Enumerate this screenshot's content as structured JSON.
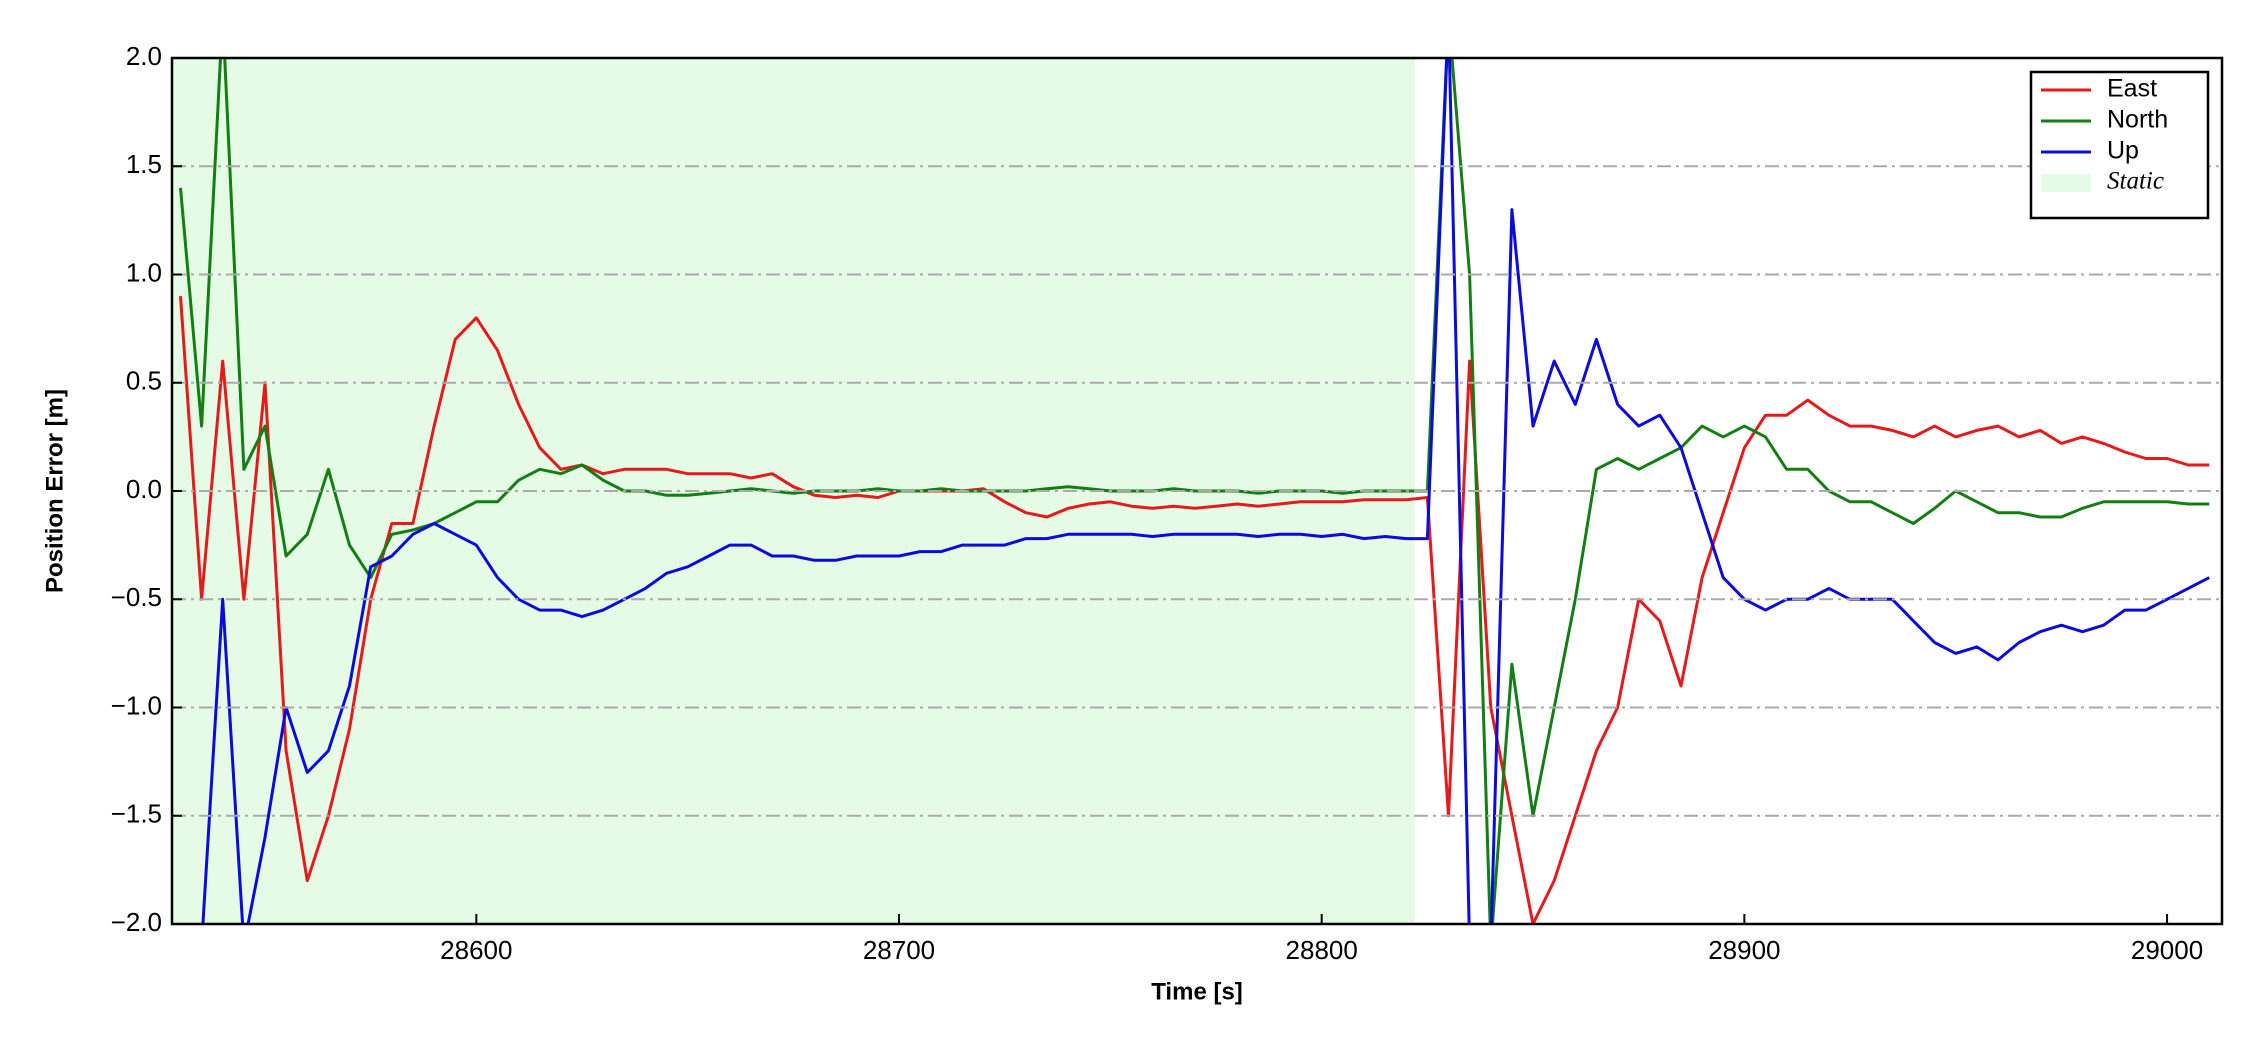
{
  "chart_data": {
    "type": "line",
    "x_label": "Time [s]",
    "y_label": "Position Error [m]",
    "x": [
      28530,
      28535,
      28540,
      28545,
      28550,
      28555,
      28560,
      28565,
      28570,
      28575,
      28580,
      28585,
      28590,
      28595,
      28600,
      28605,
      28610,
      28615,
      28620,
      28625,
      28630,
      28635,
      28640,
      28645,
      28650,
      28655,
      28660,
      28665,
      28670,
      28675,
      28680,
      28685,
      28690,
      28695,
      28700,
      28705,
      28710,
      28715,
      28720,
      28725,
      28730,
      28735,
      28740,
      28745,
      28750,
      28755,
      28760,
      28765,
      28770,
      28775,
      28780,
      28785,
      28790,
      28795,
      28800,
      28805,
      28810,
      28815,
      28820,
      28825,
      28830,
      28835,
      28840,
      28845,
      28850,
      28855,
      28860,
      28865,
      28870,
      28875,
      28880,
      28885,
      28890,
      28895,
      28900,
      28905,
      28910,
      28915,
      28920,
      28925,
      28930,
      28935,
      28940,
      28945,
      28950,
      28955,
      28960,
      28965,
      28970,
      28975,
      28980,
      28985,
      28990,
      28995,
      29000,
      29005,
      29010
    ],
    "series": [
      {
        "name": "East",
        "color": "#e6191b",
        "values": [
          0.9,
          -0.5,
          0.6,
          -0.5,
          0.5,
          -1.2,
          -1.8,
          -1.5,
          -1.1,
          -0.5,
          -0.15,
          -0.15,
          0.3,
          0.7,
          0.8,
          0.65,
          0.4,
          0.2,
          0.1,
          0.12,
          0.08,
          0.1,
          0.1,
          0.1,
          0.08,
          0.08,
          0.08,
          0.06,
          0.08,
          0.02,
          -0.02,
          -0.03,
          -0.02,
          -0.03,
          0,
          0,
          0,
          0,
          0.01,
          -0.05,
          -0.1,
          -0.12,
          -0.08,
          -0.06,
          -0.05,
          -0.07,
          -0.08,
          -0.07,
          -0.08,
          -0.07,
          -0.06,
          -0.07,
          -0.06,
          -0.05,
          -0.05,
          -0.05,
          -0.04,
          -0.04,
          -0.04,
          -0.03,
          -1.5,
          0.6,
          -1.0,
          -1.5,
          -2.0,
          -1.8,
          -1.5,
          -1.2,
          -1.0,
          -0.5,
          -0.6,
          -0.9,
          -0.4,
          -0.1,
          0.2,
          0.35,
          0.35,
          0.42,
          0.35,
          0.3,
          0.3,
          0.28,
          0.25,
          0.3,
          0.25,
          0.28,
          0.3,
          0.25,
          0.28,
          0.22,
          0.25,
          0.22,
          0.18,
          0.15,
          0.15,
          0.12,
          0.12
        ]
      },
      {
        "name": "North",
        "color": "#137f13",
        "values": [
          1.4,
          0.3,
          2.2,
          0.1,
          0.3,
          -0.3,
          -0.2,
          0.1,
          -0.25,
          -0.4,
          -0.2,
          -0.18,
          -0.15,
          -0.1,
          -0.05,
          -0.05,
          0.05,
          0.1,
          0.08,
          0.12,
          0.05,
          0,
          0,
          -0.02,
          -0.02,
          -0.01,
          0,
          0.01,
          0,
          -0.01,
          0,
          0,
          0,
          0.01,
          0,
          0,
          0.01,
          0,
          0,
          0,
          0,
          0.01,
          0.02,
          0.01,
          0,
          0,
          0,
          0.01,
          0,
          0,
          0,
          -0.01,
          0,
          0,
          0,
          -0.01,
          0,
          0,
          0,
          0,
          2.2,
          1.0,
          -2.1,
          -0.8,
          -1.5,
          -1.0,
          -0.5,
          0.1,
          0.15,
          0.1,
          0.15,
          0.2,
          0.3,
          0.25,
          0.3,
          0.25,
          0.1,
          0.1,
          0,
          -0.05,
          -0.05,
          -0.1,
          -0.15,
          -0.08,
          0,
          -0.05,
          -0.1,
          -0.1,
          -0.12,
          -0.12,
          -0.08,
          -0.05,
          -0.05,
          -0.05,
          -0.05,
          -0.06,
          -0.06
        ]
      },
      {
        "name": "Up",
        "color": "#0b0bdd",
        "values": [
          -2.1,
          -2.1,
          -0.5,
          -2.1,
          -1.6,
          -1.0,
          -1.3,
          -1.2,
          -0.9,
          -0.35,
          -0.3,
          -0.2,
          -0.15,
          -0.2,
          -0.25,
          -0.4,
          -0.5,
          -0.55,
          -0.55,
          -0.58,
          -0.55,
          -0.5,
          -0.45,
          -0.38,
          -0.35,
          -0.3,
          -0.25,
          -0.25,
          -0.3,
          -0.3,
          -0.32,
          -0.32,
          -0.3,
          -0.3,
          -0.3,
          -0.28,
          -0.28,
          -0.25,
          -0.25,
          -0.25,
          -0.22,
          -0.22,
          -0.2,
          -0.2,
          -0.2,
          -0.2,
          -0.21,
          -0.2,
          -0.2,
          -0.2,
          -0.2,
          -0.21,
          -0.2,
          -0.2,
          -0.21,
          -0.2,
          -0.22,
          -0.21,
          -0.22,
          -0.22,
          2.2,
          -2.1,
          -2.1,
          1.3,
          0.3,
          0.6,
          0.4,
          0.7,
          0.4,
          0.3,
          0.35,
          0.2,
          -0.1,
          -0.4,
          -0.5,
          -0.55,
          -0.5,
          -0.5,
          -0.45,
          -0.5,
          -0.5,
          -0.5,
          -0.6,
          -0.7,
          -0.75,
          -0.72,
          -0.78,
          -0.7,
          -0.65,
          -0.62,
          -0.65,
          -0.62,
          -0.55,
          -0.55,
          -0.5,
          -0.45,
          -0.4
        ]
      }
    ],
    "spans": [
      {
        "name": "Static",
        "start": 28528,
        "end": 28822,
        "color": "#e6fbe6"
      }
    ],
    "xlim": [
      28528,
      29013
    ],
    "xticks": [
      28600,
      28700,
      28800,
      28900,
      29000
    ],
    "ylim": [
      -2,
      2
    ],
    "yticks": [
      {
        "value": -2,
        "label": "−2.0"
      },
      {
        "value": -1.5,
        "label": "−1.5"
      },
      {
        "value": -1,
        "label": "−1.0"
      },
      {
        "value": -0.5,
        "label": "−0.5"
      },
      {
        "value": 0,
        "label": "0.0"
      },
      0.5,
      {
        "value": 1,
        "label": "1.0"
      },
      1.5,
      {
        "value": 2,
        "label": "2.0"
      }
    ],
    "grid": "y",
    "legend": "upper right"
  }
}
